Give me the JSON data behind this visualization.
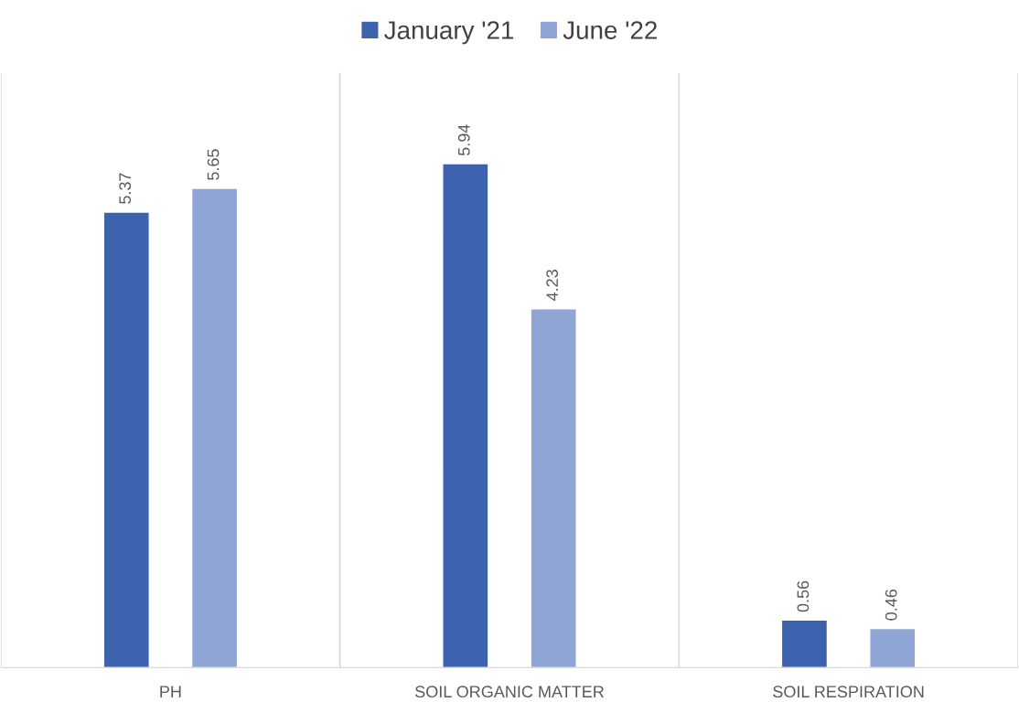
{
  "chart_data": {
    "type": "bar",
    "categories": [
      "PH",
      "SOIL ORGANIC MATTER",
      "SOIL RESPIRATION"
    ],
    "series": [
      {
        "name": "January '21",
        "color": "#3d63ae",
        "values": [
          5.37,
          5.94,
          0.56
        ]
      },
      {
        "name": "June '22",
        "color": "#8fa5d5",
        "values": [
          5.65,
          4.23,
          0.46
        ]
      }
    ],
    "data_labels": true,
    "grid": "x",
    "legend": "top",
    "tick_labels": "x"
  }
}
